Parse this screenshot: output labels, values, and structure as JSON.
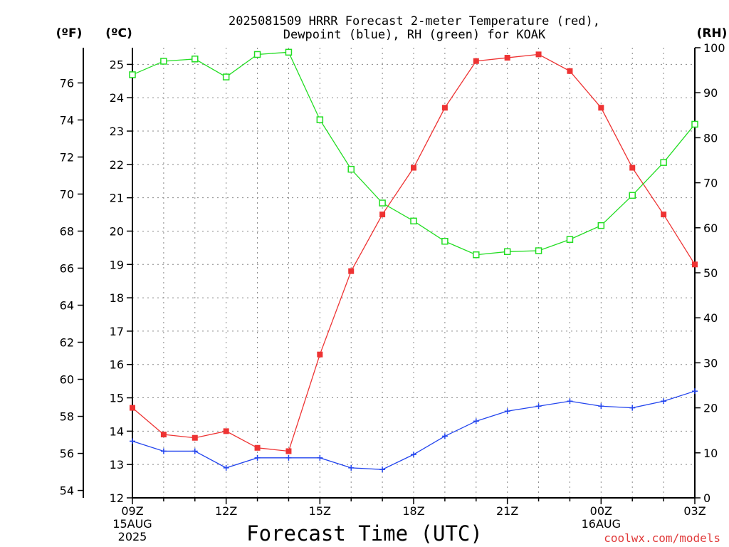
{
  "chart_data": {
    "type": "line",
    "title_line1": "2025081509 HRRR Forecast 2-meter Temperature (red),",
    "title_line2": "Dewpoint (blue), RH (green) for KOAK",
    "xlabel": "Forecast Time (UTC)",
    "credit": "coolwx.com/models",
    "unit_labels": {
      "fahrenheit": "(ºF)",
      "celsius": "(ºC)",
      "rh": "(RH)"
    },
    "x_hours": [
      0,
      1,
      2,
      3,
      4,
      5,
      6,
      7,
      8,
      9,
      10,
      11,
      12,
      13,
      14,
      15,
      16,
      17,
      18
    ],
    "x_ticks": [
      {
        "hour": 0,
        "label": "09Z",
        "sub1": "15AUG",
        "sub2": "2025"
      },
      {
        "hour": 3,
        "label": "12Z",
        "sub1": "",
        "sub2": ""
      },
      {
        "hour": 6,
        "label": "15Z",
        "sub1": "",
        "sub2": ""
      },
      {
        "hour": 9,
        "label": "18Z",
        "sub1": "",
        "sub2": ""
      },
      {
        "hour": 12,
        "label": "21Z",
        "sub1": "",
        "sub2": ""
      },
      {
        "hour": 15,
        "label": "00Z",
        "sub1": "16AUG",
        "sub2": ""
      },
      {
        "hour": 18,
        "label": "03Z",
        "sub1": "",
        "sub2": ""
      }
    ],
    "celsius_range": [
      12,
      25.5
    ],
    "celsius_ticks": [
      12,
      13,
      14,
      15,
      16,
      17,
      18,
      19,
      20,
      21,
      22,
      23,
      24,
      25
    ],
    "fahrenheit_ticks": [
      54,
      56,
      58,
      60,
      62,
      64,
      66,
      68,
      70,
      72,
      74,
      76
    ],
    "rh_range": [
      0,
      100
    ],
    "rh_ticks": [
      0,
      10,
      20,
      30,
      40,
      50,
      60,
      70,
      80,
      90,
      100
    ],
    "grid": true,
    "series": [
      {
        "name": "Temperature",
        "color": "#ee3333",
        "marker": "filled-square",
        "axis": "celsius",
        "values": [
          14.7,
          13.9,
          13.8,
          14.0,
          13.5,
          13.4,
          16.3,
          18.8,
          20.5,
          21.9,
          23.7,
          25.1,
          25.2,
          25.3,
          24.8,
          23.7,
          21.9,
          20.5,
          19.0
        ]
      },
      {
        "name": "Dewpoint",
        "color": "#2244ee",
        "marker": "plus",
        "axis": "celsius",
        "values": [
          13.7,
          13.4,
          13.4,
          12.9,
          13.2,
          13.2,
          13.2,
          12.9,
          12.85,
          13.3,
          13.85,
          14.3,
          14.6,
          14.75,
          14.9,
          14.75,
          14.7,
          14.9,
          15.2
        ]
      },
      {
        "name": "RH",
        "color": "#22dd22",
        "marker": "open-square",
        "axis": "rh",
        "values": [
          94,
          97,
          97.5,
          93.5,
          98.5,
          99,
          84,
          73,
          65.5,
          61.5,
          57,
          54,
          54.7,
          54.9,
          57.4,
          60.5,
          67.2,
          74.5,
          83
        ]
      }
    ]
  }
}
